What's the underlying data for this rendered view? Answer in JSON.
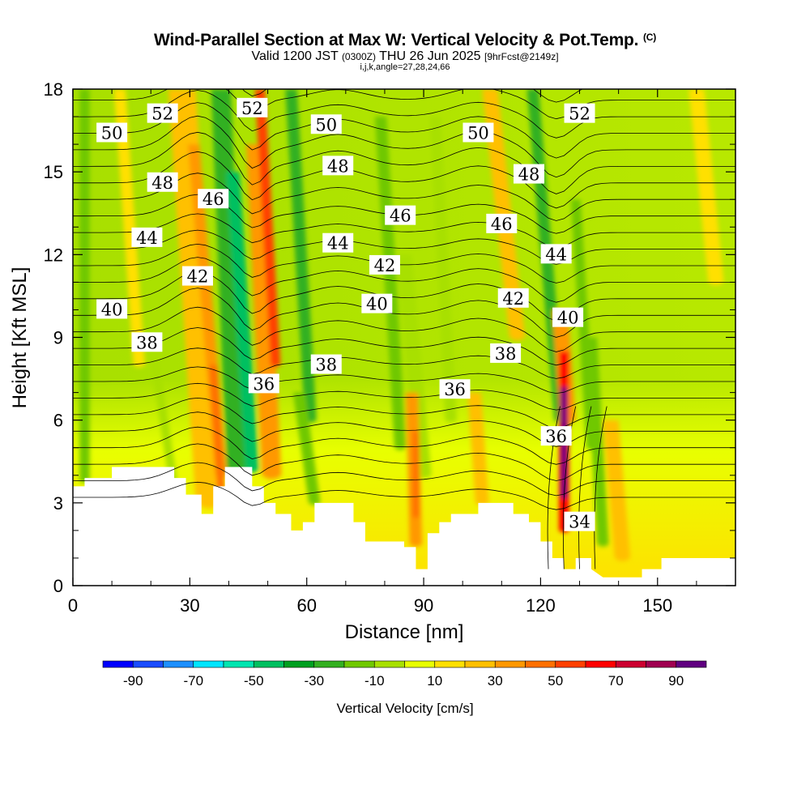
{
  "header": {
    "title": "Wind-Parallel Section at Max W: Vertical Velocity & Pot.Temp.",
    "copyright": "(C)",
    "valid_prefix": "Valid 1200 JST",
    "valid_utc": "(0300Z)",
    "valid_date": "THU 26 Jun 2025",
    "forecast": "[9hrFcst@2149z]",
    "indices": "i,j,k,angle=27,28,24,66"
  },
  "chart_data": {
    "type": "heatmap",
    "title": "Wind-Parallel Section at Max W: Vertical Velocity & Pot.Temp.",
    "xlabel": "Distance [nm]",
    "ylabel": "Height [Kft MSL]",
    "xlim": [
      0,
      170
    ],
    "ylim": [
      0,
      18
    ],
    "x_ticks": [
      0,
      30,
      60,
      90,
      120,
      150
    ],
    "y_ticks": [
      0,
      3,
      6,
      9,
      12,
      15,
      18
    ],
    "fill_variable": "Vertical Velocity [cm/s]",
    "contour_variable": "Pot.Temp.",
    "colorbar": {
      "label": "Vertical Velocity [cm/s]",
      "tick_labels": [
        "-90",
        "-70",
        "-50",
        "-30",
        "-10",
        "10",
        "30",
        "50",
        "70",
        "90"
      ],
      "bounds": [
        -100,
        100
      ],
      "step": 10,
      "colors": [
        "#0000ff",
        "#1a4cff",
        "#1e90ff",
        "#00e5ff",
        "#00e5b0",
        "#00c060",
        "#00a020",
        "#33b020",
        "#70c800",
        "#a8e000",
        "#e8ff00",
        "#ffe000",
        "#ffc000",
        "#ff9800",
        "#ff7000",
        "#ff4000",
        "#ff0000",
        "#cc0030",
        "#a00050",
        "#600080"
      ]
    },
    "contour_labels": [
      {
        "text": "52",
        "x": 23,
        "y": 17.1
      },
      {
        "text": "52",
        "x": 46,
        "y": 17.3
      },
      {
        "text": "52",
        "x": 130,
        "y": 17.1
      },
      {
        "text": "50",
        "x": 10,
        "y": 16.4
      },
      {
        "text": "50",
        "x": 65,
        "y": 16.7
      },
      {
        "text": "50",
        "x": 104,
        "y": 16.4
      },
      {
        "text": "48",
        "x": 23,
        "y": 14.6
      },
      {
        "text": "48",
        "x": 68,
        "y": 15.2
      },
      {
        "text": "48",
        "x": 117,
        "y": 14.9
      },
      {
        "text": "46",
        "x": 36,
        "y": 14.0
      },
      {
        "text": "46",
        "x": 84,
        "y": 13.4
      },
      {
        "text": "46",
        "x": 110,
        "y": 13.1
      },
      {
        "text": "44",
        "x": 19,
        "y": 12.6
      },
      {
        "text": "44",
        "x": 68,
        "y": 12.4
      },
      {
        "text": "44",
        "x": 124,
        "y": 12.0
      },
      {
        "text": "42",
        "x": 32,
        "y": 11.2
      },
      {
        "text": "42",
        "x": 80,
        "y": 11.6
      },
      {
        "text": "42",
        "x": 113,
        "y": 10.4
      },
      {
        "text": "40",
        "x": 10,
        "y": 10.0
      },
      {
        "text": "40",
        "x": 78,
        "y": 10.2
      },
      {
        "text": "40",
        "x": 127,
        "y": 9.7
      },
      {
        "text": "38",
        "x": 19,
        "y": 8.8
      },
      {
        "text": "38",
        "x": 65,
        "y": 8.0
      },
      {
        "text": "38",
        "x": 111,
        "y": 8.4
      },
      {
        "text": "36",
        "x": 49,
        "y": 7.3
      },
      {
        "text": "36",
        "x": 98,
        "y": 7.1
      },
      {
        "text": "36",
        "x": 124,
        "y": 5.4
      },
      {
        "text": "34",
        "x": 130,
        "y": 2.3
      }
    ]
  }
}
